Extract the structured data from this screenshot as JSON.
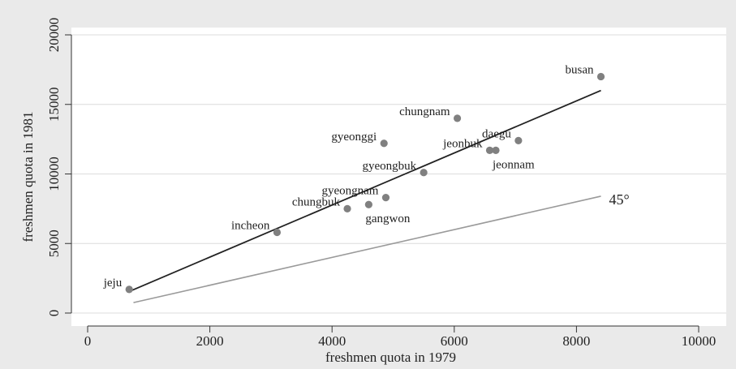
{
  "chart_data": {
    "type": "scatter",
    "title": "",
    "xlabel": "freshmen quota in 1979",
    "ylabel": "freshmen quota in 1981",
    "xlim": [
      0,
      10000
    ],
    "ylim": [
      0,
      20000
    ],
    "xticks": [
      "0",
      "2000",
      "4000",
      "6000",
      "8000",
      "10000"
    ],
    "yticks": [
      "0",
      "5000",
      "10000",
      "15000",
      "20000"
    ],
    "grid": true,
    "colors": {
      "background": "#eaeaea",
      "plot": "#ffffff",
      "points": "#808080",
      "fit_line": "#222222",
      "ref_line": "#9a9a9a"
    },
    "points": [
      {
        "label": "jeju",
        "x": 680,
        "y": 1700,
        "label_pos": "left"
      },
      {
        "label": "incheon",
        "x": 3100,
        "y": 5800,
        "label_pos": "left"
      },
      {
        "label": "chungbuk",
        "x": 4250,
        "y": 7500,
        "label_pos": "left"
      },
      {
        "label": "gangwon",
        "x": 4600,
        "y": 7800,
        "label_pos": "below"
      },
      {
        "label": "gyeongnam",
        "x": 4880,
        "y": 8300,
        "label_pos": "left"
      },
      {
        "label": "gyeongbuk",
        "x": 5500,
        "y": 10100,
        "label_pos": "left"
      },
      {
        "label": "gyeonggi",
        "x": 4850,
        "y": 12200,
        "label_pos": "left"
      },
      {
        "label": "chungnam",
        "x": 6050,
        "y": 14000,
        "label_pos": "left"
      },
      {
        "label": "jeonbuk",
        "x": 6580,
        "y": 11700,
        "label_pos": "left"
      },
      {
        "label": "jeonnam",
        "x": 6680,
        "y": 11700,
        "label_pos": "below"
      },
      {
        "label": "daegu",
        "x": 7050,
        "y": 12400,
        "label_pos": "left"
      },
      {
        "label": "busan",
        "x": 8400,
        "y": 17000,
        "label_pos": "left"
      }
    ],
    "fit_line": {
      "x": [
        680,
        8400
      ],
      "y": [
        1550,
        16000
      ]
    },
    "reference_line": {
      "label": "45°",
      "x": [
        750,
        8400
      ],
      "y": [
        750,
        8400
      ]
    }
  }
}
